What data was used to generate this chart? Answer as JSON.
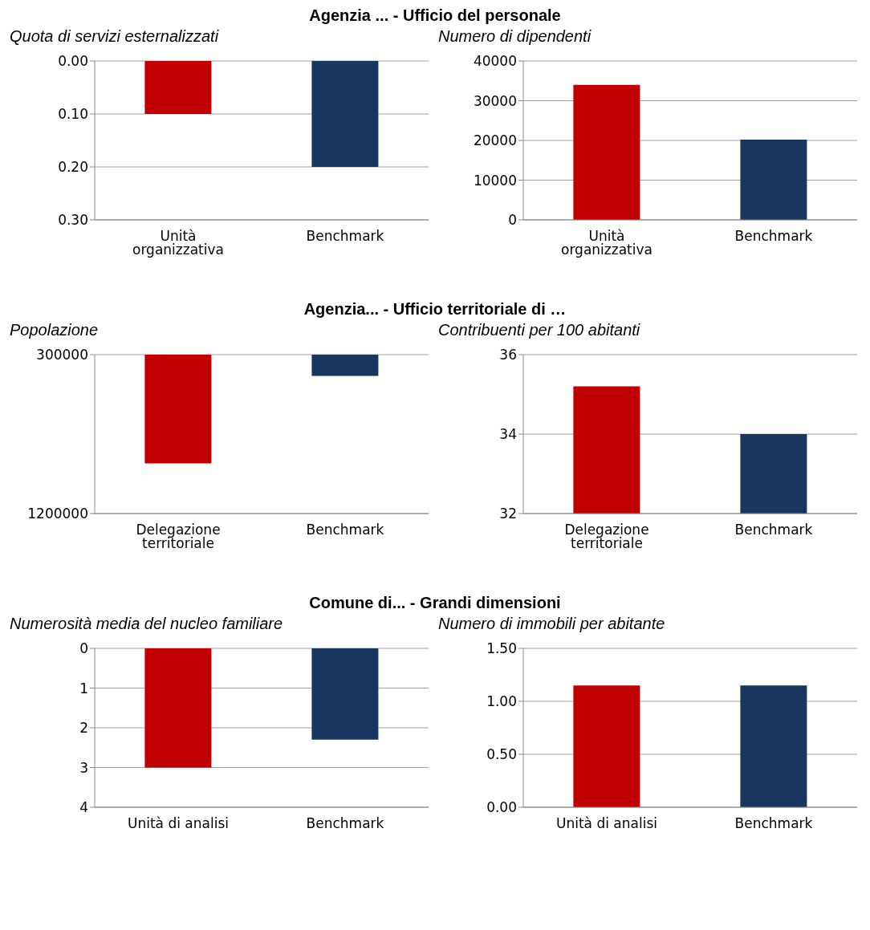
{
  "chart_data": [
    {
      "type": "bar",
      "annotations": [
        "Agenzia ... - Ufficio del personale"
      ],
      "title": "Quota di servizi esternalizzati",
      "categories": [
        "Unità organizzativa",
        "Benchmark"
      ],
      "values": [
        0.1,
        0.2
      ],
      "colors": [
        "#c00000",
        "#17375e"
      ],
      "ylim": [
        0.3,
        0
      ],
      "yticks": [
        {
          "value": 0,
          "label": "0.00"
        },
        {
          "value": 0.1,
          "label": "0.10"
        },
        {
          "value": 0.2,
          "label": "0.20"
        },
        {
          "value": 0.3,
          "label": "0.30"
        }
      ],
      "grid": "y"
    },
    {
      "type": "bar",
      "title": "Numero di dipendenti",
      "categories": [
        "Unità organizzativa",
        "Benchmark"
      ],
      "values": [
        34000,
        20200
      ],
      "colors": [
        "#c00000",
        "#17375e"
      ],
      "ylim": [
        0,
        40000
      ],
      "yticks": [
        0,
        10000,
        20000,
        30000,
        40000
      ],
      "grid": "y"
    },
    {
      "type": "bar",
      "annotations": [
        "Agenzia... - Ufficio territoriale di …"
      ],
      "title": "Popolazione",
      "categories": [
        "Delegazione territoriale",
        "Benchmark"
      ],
      "values": [
        916000,
        421000
      ],
      "colors": [
        "#c00000",
        "#17375e"
      ],
      "ylim": [
        1200000,
        300000
      ],
      "yticks": [
        300000,
        1200000
      ],
      "grid": "y"
    },
    {
      "type": "bar",
      "title": "Contribuenti per 100 abitanti",
      "categories": [
        "Delegazione territoriale",
        "Benchmark"
      ],
      "values": [
        35.2,
        34.0
      ],
      "colors": [
        "#c00000",
        "#17375e"
      ],
      "ylim": [
        32,
        36
      ],
      "yticks": [
        32,
        34,
        36
      ],
      "grid": "y"
    },
    {
      "type": "bar",
      "annotations": [
        "Comune di... - Grandi dimensioni"
      ],
      "title": "Numerosità media del nucleo familiare",
      "categories": [
        "Unità di analisi",
        "Benchmark"
      ],
      "values": [
        3.0,
        2.3
      ],
      "colors": [
        "#c00000",
        "#17375e"
      ],
      "ylim": [
        4,
        0
      ],
      "yticks": [
        0,
        1,
        2,
        3,
        4
      ],
      "grid": "y"
    },
    {
      "type": "bar",
      "title": "Numero di immobili per abitante",
      "categories": [
        "Unità di analisi",
        "Benchmark"
      ],
      "values": [
        1.15,
        1.15
      ],
      "colors": [
        "#c00000",
        "#17375e"
      ],
      "ylim": [
        0,
        1.5
      ],
      "yticks": [
        {
          "value": 0,
          "label": "0.00"
        },
        {
          "value": 0.5,
          "label": "0.50"
        },
        {
          "value": 1,
          "label": "1.00"
        },
        {
          "value": 1.5,
          "label": "1.50"
        }
      ],
      "grid": "y"
    }
  ]
}
